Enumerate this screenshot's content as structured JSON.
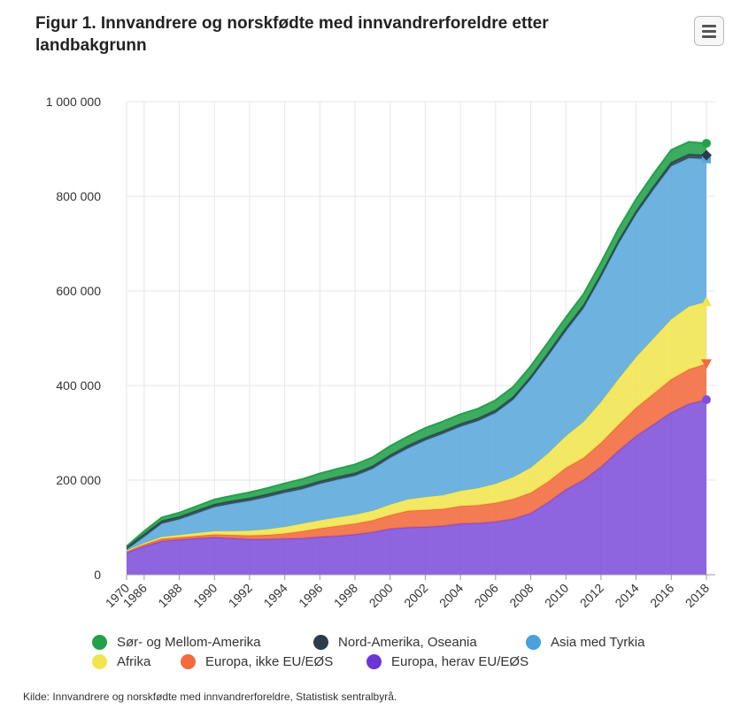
{
  "title": "Figur 1. Innvandrere og norskfødte med innvandrerforeldre etter landbakgrunn",
  "menu": {
    "icon": "hamburger-menu-icon"
  },
  "source": "Kilde: Innvandrere og norskfødte med innvandrerforeldre, Statistisk sentralbyrå.",
  "chart_data": {
    "type": "area",
    "stacked": true,
    "title": "Figur 1. Innvandrere og norskfødte med innvandrerforeldre etter landbakgrunn",
    "xlabel": "",
    "ylabel": "",
    "ylim": [
      0,
      1000000
    ],
    "yticks": [
      0,
      200000,
      400000,
      600000,
      800000,
      1000000
    ],
    "ytick_labels": [
      "0",
      "200 000",
      "400 000",
      "600 000",
      "800 000",
      "1 000 000"
    ],
    "grid": true,
    "legend_position": "bottom",
    "x": [
      "1970",
      "1986",
      "1987",
      "1988",
      "1989",
      "1990",
      "1991",
      "1992",
      "1993",
      "1994",
      "1995",
      "1996",
      "1997",
      "1998",
      "1999",
      "2000",
      "2001",
      "2002",
      "2003",
      "2004",
      "2005",
      "2006",
      "2007",
      "2008",
      "2009",
      "2010",
      "2011",
      "2012",
      "2013",
      "2014",
      "2015",
      "2016",
      "2017",
      "2018"
    ],
    "x_tick_labels": [
      "1970",
      "1986",
      "1988",
      "1990",
      "1992",
      "1994",
      "1996",
      "1998",
      "2000",
      "2002",
      "2004",
      "2006",
      "2008",
      "2010",
      "2012",
      "2014",
      "2016",
      "2018"
    ],
    "series": [
      {
        "name": "Europa, herav EU/EØS",
        "color": "#7f4fdb",
        "marker": "circle",
        "values": [
          47000,
          60000,
          71000,
          74000,
          77000,
          79000,
          77000,
          75000,
          75000,
          76000,
          77000,
          80000,
          82000,
          85000,
          90000,
          97000,
          100000,
          101000,
          103000,
          108000,
          109000,
          112000,
          118000,
          130000,
          153000,
          180000,
          200000,
          228000,
          262000,
          293000,
          318000,
          343000,
          361000,
          370000
        ]
      },
      {
        "name": "Europa, ikke EU/EØS",
        "color": "#f26a3d",
        "marker": "triangle-down",
        "values": [
          3000,
          4000,
          5000,
          5000,
          5000,
          6000,
          7000,
          8000,
          9000,
          11000,
          15000,
          18000,
          21000,
          23000,
          25000,
          29000,
          35000,
          36000,
          36000,
          37000,
          38000,
          40000,
          42000,
          43000,
          44000,
          46000,
          47000,
          51000,
          55000,
          60000,
          65000,
          70000,
          73000,
          76000
        ]
      },
      {
        "name": "Afrika",
        "color": "#f1e54f",
        "marker": "triangle",
        "values": [
          1000,
          3000,
          4000,
          5000,
          6000,
          7000,
          8000,
          10000,
          12000,
          14000,
          16000,
          17000,
          18000,
          19000,
          20000,
          22000,
          24000,
          27000,
          29000,
          32000,
          36000,
          40000,
          46000,
          53000,
          60000,
          67000,
          76000,
          86000,
          97000,
          107000,
          117000,
          127000,
          133000,
          131000
        ]
      },
      {
        "name": "Asia med Tyrkia",
        "color": "#5aa9dc",
        "marker": "square",
        "values": [
          2000,
          13000,
          28000,
          33000,
          42000,
          51000,
          58000,
          63000,
          68000,
          72000,
          73000,
          77000,
          80000,
          82000,
          89000,
          99000,
          108000,
          120000,
          130000,
          136000,
          142000,
          150000,
          164000,
          187000,
          206000,
          222000,
          240000,
          264000,
          286000,
          302000,
          315000,
          324000,
          314000,
          302000
        ]
      },
      {
        "name": "Nord-Amerika, Oseania",
        "color": "#2b3d4a",
        "marker": "diamond",
        "values": [
          6000,
          6000,
          6000,
          6000,
          6000,
          6000,
          6000,
          6000,
          6000,
          6000,
          6000,
          6000,
          6000,
          6000,
          6000,
          6000,
          6000,
          6000,
          6000,
          6000,
          6000,
          6000,
          6000,
          6000,
          7000,
          7000,
          7000,
          7000,
          7000,
          7000,
          7000,
          8000,
          8000,
          8000
        ]
      },
      {
        "name": "Sør- og Mellom-Amerika",
        "color": "#23a14a",
        "marker": "circle",
        "values": [
          1000,
          6000,
          7000,
          8000,
          9000,
          10000,
          11000,
          12000,
          13000,
          14000,
          15000,
          16000,
          17000,
          18000,
          18000,
          19000,
          19000,
          20000,
          20000,
          20000,
          20000,
          21000,
          21000,
          22000,
          22000,
          22000,
          23000,
          24000,
          25000,
          25000,
          26000,
          26000,
          26000,
          25000
        ]
      }
    ]
  },
  "legend": {
    "rows": [
      [
        "Sør- og Mellom-Amerika",
        "Nord-Amerika, Oseania",
        "Asia med Tyrkia"
      ],
      [
        "Afrika",
        "Europa, ikke EU/EØS",
        "Europa, herav EU/EØS"
      ]
    ],
    "colors": {
      "Sør- og Mellom-Amerika": "#23a14a",
      "Nord-Amerika, Oseania": "#2b3d4a",
      "Asia med Tyrkia": "#4aa0db",
      "Afrika": "#f1e54f",
      "Europa, ikke EU/EØS": "#f26a3d",
      "Europa, herav EU/EØS": "#6a37d5"
    }
  }
}
